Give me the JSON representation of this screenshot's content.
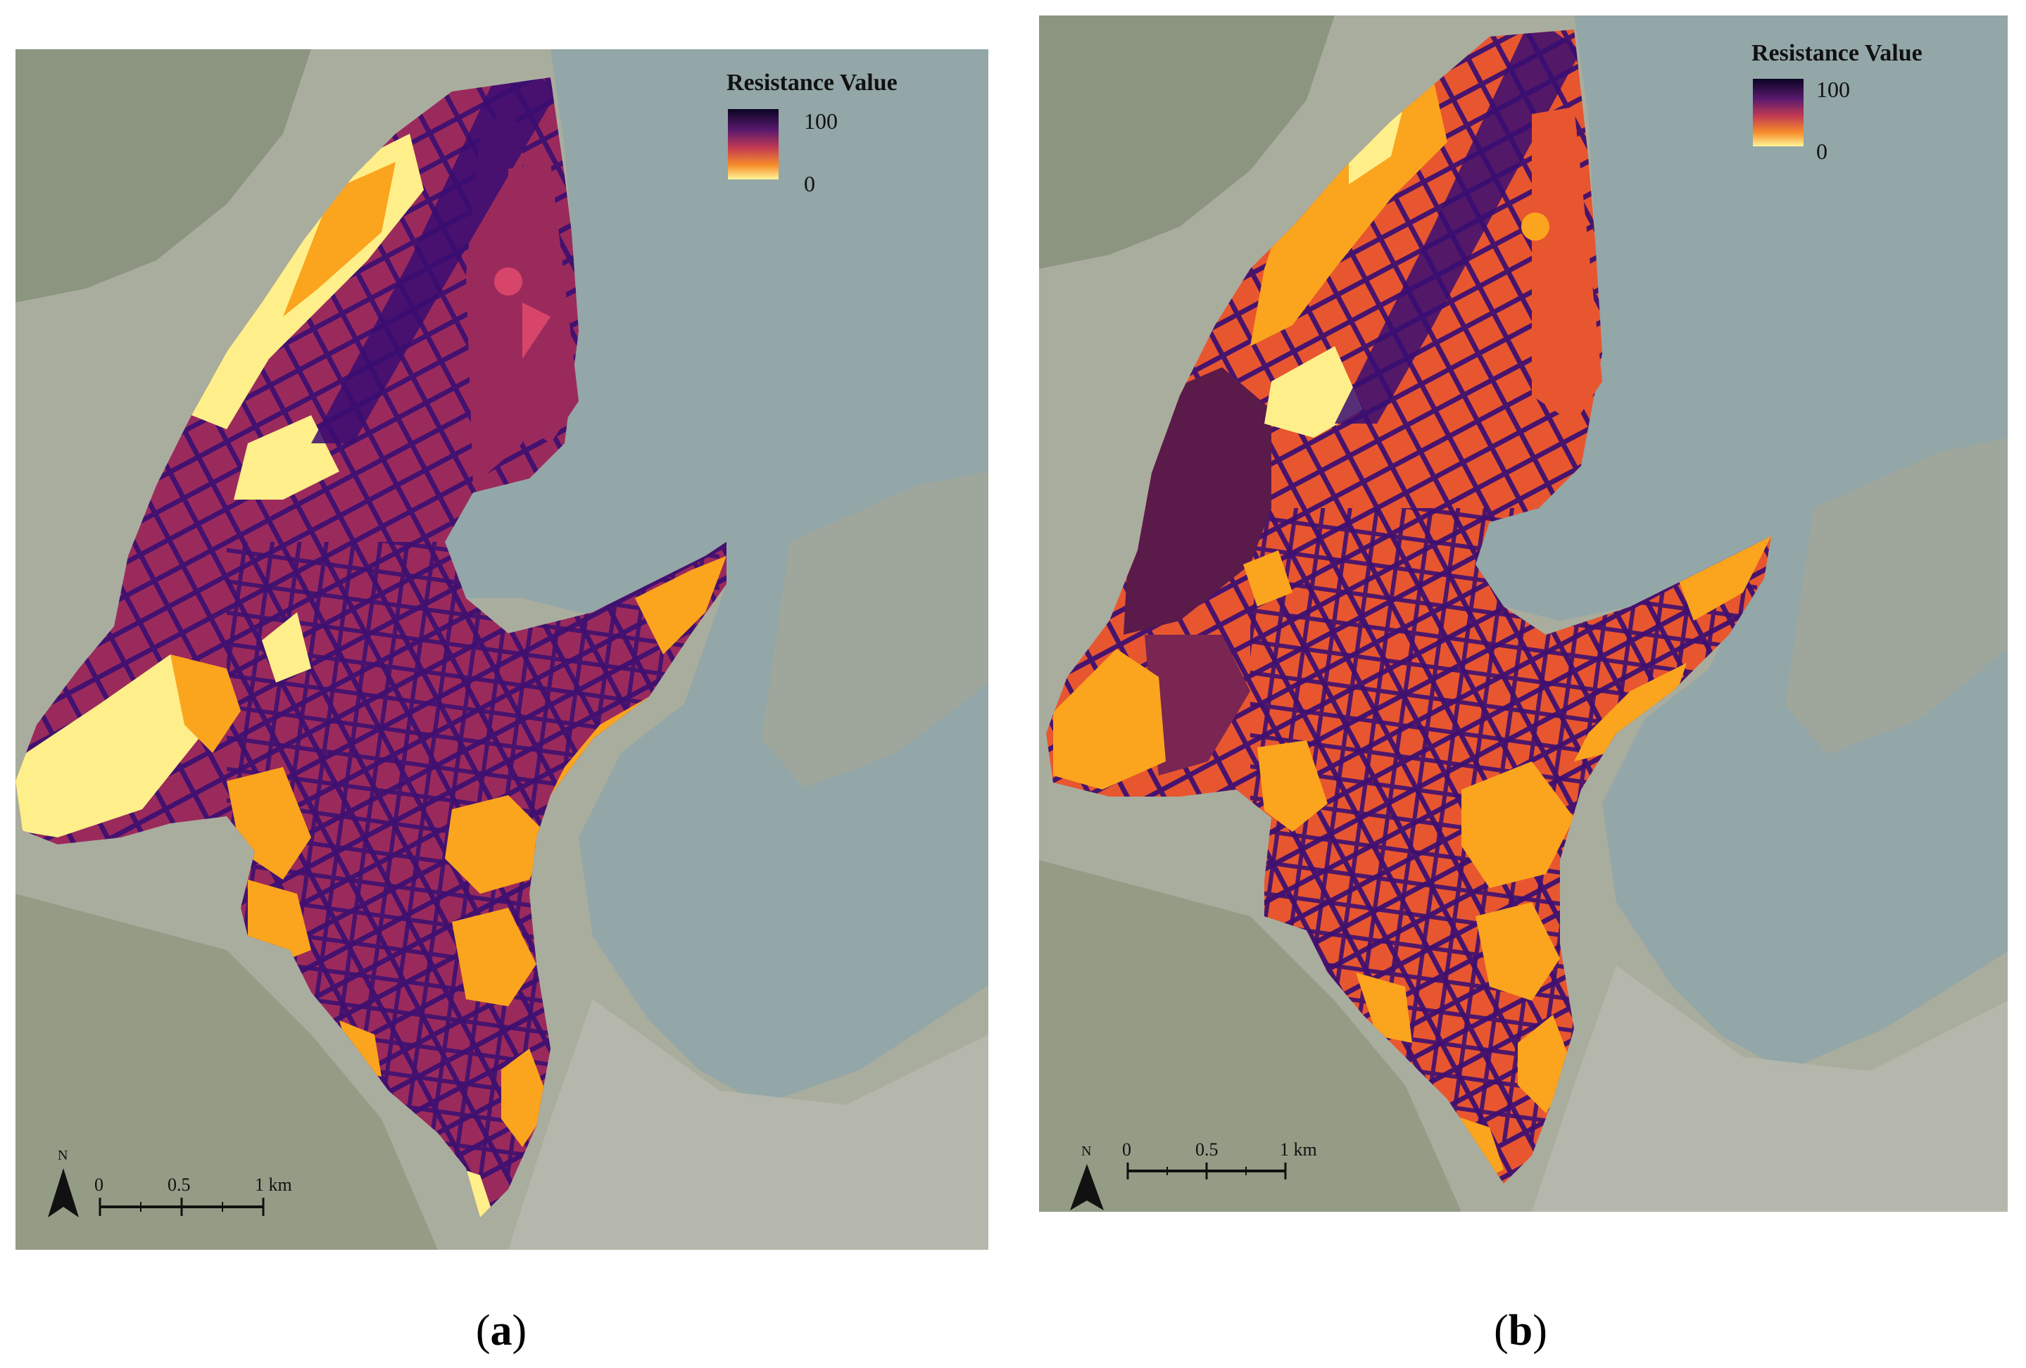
{
  "colors": {
    "water": "#93a6a8",
    "land": "#a9ad9e",
    "land_dark": "#7f8a72",
    "low": "#ffef8a",
    "mid": "#fba41e",
    "midhigh": "#e8562f",
    "high": "#9b2a5c",
    "max": "#3a0d72",
    "road": "#3e1070"
  },
  "panels": [
    {
      "id": "a",
      "legend": {
        "title": "Resistance Value",
        "max_label": "100",
        "min_label": "0"
      },
      "scale": {
        "labels": [
          "0",
          "0.5",
          "1 km"
        ],
        "north": "N"
      },
      "caption": {
        "open": "(",
        "letter": "a",
        "close": ")"
      }
    },
    {
      "id": "b",
      "legend": {
        "title": "Resistance Value",
        "max_label": "100",
        "min_label": "0"
      },
      "scale": {
        "labels": [
          "0",
          "0.5",
          "1 km"
        ],
        "north": "N"
      },
      "caption": {
        "open": "(",
        "letter": "b",
        "close": ")"
      }
    }
  ]
}
